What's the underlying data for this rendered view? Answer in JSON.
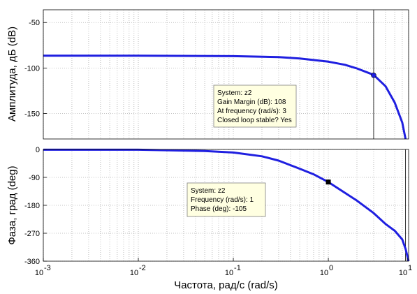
{
  "chart_data": [
    {
      "type": "line",
      "name": "magnitude",
      "ylabel": "Амплитуда, дБ (dB)",
      "xscale": "log",
      "xlim": [
        0.001,
        7
      ],
      "ylim": [
        -178,
        -36
      ],
      "yticks": [
        {
          "value": -50,
          "label": "-50"
        },
        {
          "value": -100,
          "label": "-100"
        },
        {
          "value": -150,
          "label": "-150"
        }
      ],
      "grid": true,
      "series": [
        {
          "color": "#1f1fe0",
          "x": [
            0.001,
            0.01,
            0.1,
            0.3,
            0.5,
            1,
            1.5,
            2,
            3,
            4,
            5,
            6,
            6.5
          ],
          "y": [
            -86.5,
            -86.5,
            -87,
            -88,
            -89.5,
            -93,
            -96.5,
            -100.5,
            -107.5,
            -120,
            -138,
            -160,
            -178
          ]
        }
      ],
      "marker": {
        "x": 3,
        "y": -108
      },
      "vline_x": 3,
      "datatip": [
        "System: z2",
        "Gain Margin (dB): 108",
        "At frequency (rad/s): 3",
        "Closed loop stable? Yes"
      ]
    },
    {
      "type": "line",
      "name": "phase",
      "ylabel": "Фаза, град (deg)",
      "xlabel": "Частота, рад/с  (rad/s)",
      "xscale": "log",
      "xlim": [
        0.001,
        7
      ],
      "ylim": [
        -360,
        0
      ],
      "yticks": [
        {
          "value": 0,
          "label": "0"
        },
        {
          "value": -90,
          "label": "-90"
        },
        {
          "value": -180,
          "label": "-180"
        },
        {
          "value": -270,
          "label": "-270"
        },
        {
          "value": -360,
          "label": "-360"
        }
      ],
      "xticks": [
        {
          "value": 0.001,
          "base": "10",
          "exp": "-3"
        },
        {
          "value": 0.01,
          "base": "10",
          "exp": "-2"
        },
        {
          "value": 0.1,
          "base": "10",
          "exp": "-1"
        },
        {
          "value": 1,
          "base": "10",
          "exp": "0"
        },
        {
          "value": 10,
          "base": "10",
          "exp": "1"
        }
      ],
      "grid": true,
      "series": [
        {
          "color": "#1f1fe0",
          "x": [
            0.001,
            0.01,
            0.05,
            0.1,
            0.2,
            0.3,
            0.5,
            0.7,
            1,
            1.5,
            2,
            3,
            4,
            5,
            6,
            6.5,
            7
          ],
          "y": [
            -1,
            -1,
            -5,
            -10,
            -22,
            -36,
            -62,
            -80,
            -105,
            -140,
            -165,
            -205,
            -240,
            -262,
            -290,
            -320,
            -360
          ]
        }
      ],
      "marker": {
        "x": 1,
        "y": -105
      },
      "vline_x": 6.5,
      "datatip": [
        "System: z2",
        "Frequency (rad/s): 1",
        "Phase (deg): -105"
      ]
    }
  ]
}
